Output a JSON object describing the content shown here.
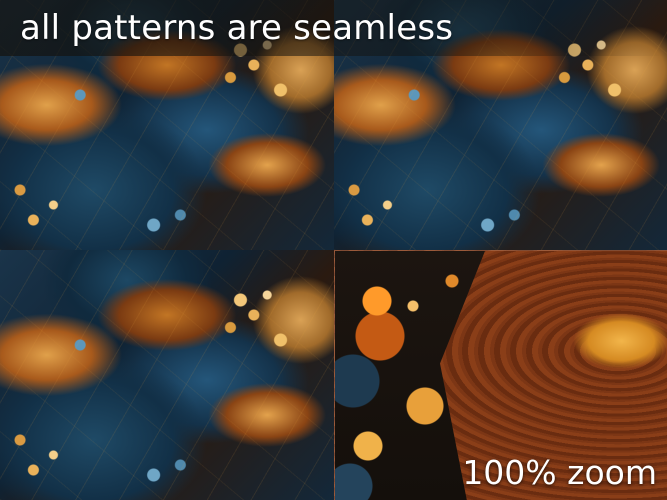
{
  "headline": "all patterns are seamless",
  "zoom_label": "100% zoom",
  "colors": {
    "deep_blue": "#123047",
    "amber": "#e0a04a",
    "burnt_orange": "#a85a1c",
    "text": "#ffffff"
  }
}
